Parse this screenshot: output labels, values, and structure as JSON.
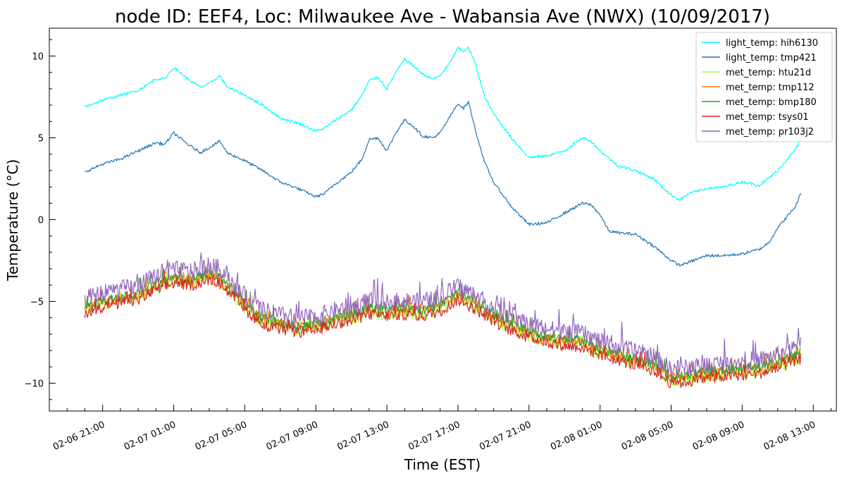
{
  "chart_data": {
    "type": "line",
    "title": "node ID: EEF4, Loc: Milwaukee Ave - Wabansia Ave (NWX) (10/09/2017)",
    "xlabel": "Time (EST)",
    "ylabel": "Temperature (°C)",
    "x_tick_labels": [
      "02-06 21:00",
      "02-07 01:00",
      "02-07 05:00",
      "02-07 09:00",
      "02-07 13:00",
      "02-07 17:00",
      "02-07 21:00",
      "02-08 01:00",
      "02-08 05:00",
      "02-08 09:00",
      "02-08 13:00"
    ],
    "x_ticks": [
      0,
      4,
      8,
      12,
      16,
      20,
      24,
      28,
      32,
      36,
      40
    ],
    "xlim": [
      -3,
      41.3
    ],
    "y_tick_labels": [
      "−10",
      "−5",
      "0",
      "5",
      "10"
    ],
    "y_ticks": [
      -10,
      -5,
      0,
      5,
      10
    ],
    "ylim": [
      -11.7,
      11.7
    ],
    "legend_position": "top-right",
    "grid": false,
    "series": [
      {
        "name": "light_temp: hih6130",
        "color": "#00ffff",
        "noise": 0.08,
        "points": [
          [
            -1,
            6.9
          ],
          [
            0,
            7.3
          ],
          [
            1,
            7.6
          ],
          [
            2,
            7.9
          ],
          [
            3,
            8.6
          ],
          [
            3.5,
            8.6
          ],
          [
            4,
            9.3
          ],
          [
            4.8,
            8.6
          ],
          [
            5.5,
            8.1
          ],
          [
            6,
            8.3
          ],
          [
            6.6,
            8.8
          ],
          [
            7,
            8.1
          ],
          [
            8,
            7.6
          ],
          [
            9,
            7.0
          ],
          [
            10,
            6.2
          ],
          [
            11,
            5.9
          ],
          [
            12,
            5.4
          ],
          [
            12.5,
            5.6
          ],
          [
            13,
            6.0
          ],
          [
            14,
            6.7
          ],
          [
            14.6,
            7.6
          ],
          [
            15,
            8.5
          ],
          [
            15.5,
            8.7
          ],
          [
            16,
            8.0
          ],
          [
            16.5,
            9.0
          ],
          [
            17,
            9.8
          ],
          [
            17.5,
            9.4
          ],
          [
            18,
            8.9
          ],
          [
            18.6,
            8.6
          ],
          [
            19,
            8.8
          ],
          [
            19.5,
            9.5
          ],
          [
            20,
            10.5
          ],
          [
            20.3,
            10.3
          ],
          [
            20.6,
            10.5
          ],
          [
            21,
            9.5
          ],
          [
            21.5,
            7.5
          ],
          [
            22,
            6.5
          ],
          [
            23,
            5.0
          ],
          [
            24,
            3.8
          ],
          [
            25,
            3.9
          ],
          [
            26,
            4.2
          ],
          [
            27,
            5.0
          ],
          [
            27.5,
            4.8
          ],
          [
            28,
            4.2
          ],
          [
            29,
            3.3
          ],
          [
            30,
            3.0
          ],
          [
            31,
            2.5
          ],
          [
            32,
            1.5
          ],
          [
            32.5,
            1.2
          ],
          [
            33,
            1.6
          ],
          [
            34,
            1.9
          ],
          [
            35,
            2.0
          ],
          [
            36,
            2.3
          ],
          [
            37,
            2.1
          ],
          [
            38,
            3.0
          ],
          [
            39,
            4.3
          ],
          [
            39.3,
            4.9
          ]
        ]
      },
      {
        "name": "light_temp: tmp421",
        "color": "#1f77b4",
        "noise": 0.08,
        "points": [
          [
            -1,
            2.9
          ],
          [
            0,
            3.4
          ],
          [
            1,
            3.7
          ],
          [
            2,
            4.2
          ],
          [
            3,
            4.7
          ],
          [
            3.5,
            4.6
          ],
          [
            4,
            5.3
          ],
          [
            4.8,
            4.6
          ],
          [
            5.5,
            4.1
          ],
          [
            6,
            4.4
          ],
          [
            6.6,
            4.8
          ],
          [
            7,
            4.1
          ],
          [
            8,
            3.6
          ],
          [
            9,
            3.0
          ],
          [
            10,
            2.3
          ],
          [
            11,
            1.9
          ],
          [
            12,
            1.4
          ],
          [
            12.5,
            1.6
          ],
          [
            13,
            2.1
          ],
          [
            14,
            2.9
          ],
          [
            14.6,
            3.7
          ],
          [
            15,
            4.9
          ],
          [
            15.5,
            5.0
          ],
          [
            16,
            4.2
          ],
          [
            16.5,
            5.3
          ],
          [
            17,
            6.1
          ],
          [
            17.5,
            5.7
          ],
          [
            18,
            5.1
          ],
          [
            18.6,
            5.0
          ],
          [
            19,
            5.3
          ],
          [
            19.5,
            6.2
          ],
          [
            20,
            7.1
          ],
          [
            20.3,
            6.8
          ],
          [
            20.6,
            7.2
          ],
          [
            21,
            5.4
          ],
          [
            21.5,
            3.5
          ],
          [
            22,
            2.3
          ],
          [
            23,
            0.8
          ],
          [
            24,
            -0.3
          ],
          [
            25,
            -0.2
          ],
          [
            26,
            0.4
          ],
          [
            27,
            1.0
          ],
          [
            27.5,
            0.9
          ],
          [
            28,
            0.3
          ],
          [
            28.5,
            -0.7
          ],
          [
            29,
            -0.8
          ],
          [
            30,
            -0.9
          ],
          [
            31,
            -1.6
          ],
          [
            32,
            -2.5
          ],
          [
            32.5,
            -2.8
          ],
          [
            33,
            -2.6
          ],
          [
            34,
            -2.2
          ],
          [
            35,
            -2.2
          ],
          [
            36,
            -2.1
          ],
          [
            37,
            -1.8
          ],
          [
            37.5,
            -1.4
          ],
          [
            38,
            -0.5
          ],
          [
            39,
            0.8
          ],
          [
            39.3,
            1.6
          ]
        ]
      },
      {
        "name": "met_temp: htu21d",
        "color": "#adff2f",
        "offset": -0.3,
        "noise": 0.35
      },
      {
        "name": "met_temp: tmp112",
        "color": "#ff7f0e",
        "offset": -0.1,
        "noise": 0.3
      },
      {
        "name": "met_temp: bmp180",
        "color": "#2ca02c",
        "offset": 0.0,
        "noise": 0.3
      },
      {
        "name": "met_temp: tsys01",
        "color": "#d62728",
        "offset": -0.4,
        "noise": 0.35
      },
      {
        "name": "met_temp: pr103j2",
        "color": "#9467bd",
        "offset": 0.45,
        "noise": 0.55
      }
    ],
    "met_base": [
      [
        -1,
        -5.3
      ],
      [
        0,
        -4.9
      ],
      [
        1,
        -4.7
      ],
      [
        2,
        -4.5
      ],
      [
        3,
        -3.9
      ],
      [
        4,
        -3.5
      ],
      [
        5,
        -3.6
      ],
      [
        6,
        -3.3
      ],
      [
        6.5,
        -3.4
      ],
      [
        7,
        -3.9
      ],
      [
        8,
        -5.1
      ],
      [
        9,
        -6.0
      ],
      [
        10,
        -6.3
      ],
      [
        11,
        -6.5
      ],
      [
        12,
        -6.4
      ],
      [
        13,
        -6.0
      ],
      [
        14,
        -5.8
      ],
      [
        15,
        -5.4
      ],
      [
        16,
        -5.5
      ],
      [
        17,
        -5.4
      ],
      [
        18,
        -5.5
      ],
      [
        19,
        -5.2
      ],
      [
        20,
        -4.5
      ],
      [
        21,
        -5.1
      ],
      [
        22,
        -5.8
      ],
      [
        23,
        -6.4
      ],
      [
        24,
        -6.8
      ],
      [
        25,
        -7.1
      ],
      [
        26,
        -7.3
      ],
      [
        27,
        -7.4
      ],
      [
        28,
        -7.9
      ],
      [
        29,
        -8.2
      ],
      [
        30,
        -8.5
      ],
      [
        31,
        -8.8
      ],
      [
        32,
        -9.6
      ],
      [
        33,
        -9.5
      ],
      [
        34,
        -9.3
      ],
      [
        35,
        -9.2
      ],
      [
        36,
        -9.1
      ],
      [
        37,
        -9.0
      ],
      [
        38,
        -8.7
      ],
      [
        39,
        -8.3
      ],
      [
        39.3,
        -8.1
      ]
    ]
  }
}
